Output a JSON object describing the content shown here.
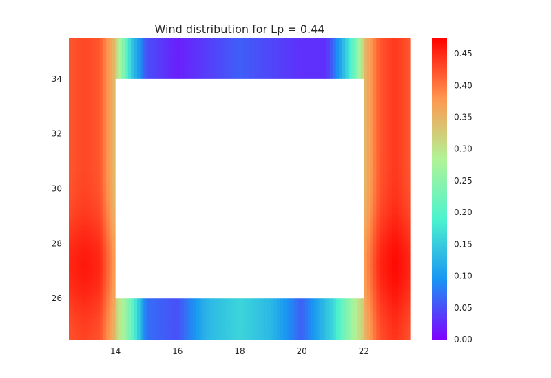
{
  "chart_data": {
    "type": "heatmap",
    "title": "Wind distribution for Lp = 0.44",
    "xlabel": "",
    "ylabel": "",
    "xlim": [
      12.5,
      23.5
    ],
    "ylim": [
      24.5,
      35.5
    ],
    "x_ticks": [
      14,
      16,
      18,
      20,
      22
    ],
    "y_ticks": [
      26,
      28,
      30,
      32,
      34
    ],
    "x_tick_labels": [
      "14",
      "16",
      "18",
      "20",
      "22"
    ],
    "y_tick_labels": [
      "26",
      "28",
      "30",
      "32",
      "34"
    ],
    "blank_region": {
      "x": [
        14,
        22
      ],
      "y": [
        26,
        34
      ]
    },
    "colormap": "rainbow",
    "colormap_stops": [
      "#8000ff",
      "#1996f3",
      "#4df3ce",
      "#b2f396",
      "#ff964f",
      "#ff0000"
    ],
    "color_range": [
      0.0,
      0.475
    ],
    "colorbar_ticks": [
      0.0,
      0.05,
      0.1,
      0.15,
      0.2,
      0.25,
      0.3,
      0.35,
      0.4,
      0.45
    ],
    "colorbar_tick_labels": [
      "0.00",
      "0.05",
      "0.10",
      "0.15",
      "0.20",
      "0.25",
      "0.30",
      "0.35",
      "0.40",
      "0.45"
    ],
    "grid": false,
    "value_profile": {
      "side_columns_x": [
        12.5,
        13.0,
        13.5,
        13.75,
        14.0,
        22.0,
        22.25,
        22.5,
        23.0,
        23.5
      ],
      "side_columns_value": [
        0.43,
        0.44,
        0.43,
        0.39,
        0.35,
        0.35,
        0.39,
        0.43,
        0.45,
        0.43
      ],
      "side_peak_y": 27.2,
      "top_band_x": [
        14.0,
        14.5,
        15.0,
        16.0,
        18.0,
        20.0,
        20.8,
        21.3,
        21.8,
        22.0
      ],
      "top_band_value": [
        0.33,
        0.15,
        0.05,
        0.02,
        0.06,
        0.03,
        0.03,
        0.12,
        0.25,
        0.33
      ],
      "bottom_band_x": [
        14.0,
        14.5,
        15.0,
        16.0,
        17.0,
        18.0,
        19.0,
        20.0,
        21.0,
        21.5,
        22.0
      ],
      "bottom_band_value": [
        0.33,
        0.22,
        0.07,
        0.05,
        0.13,
        0.16,
        0.13,
        0.06,
        0.16,
        0.25,
        0.33
      ]
    }
  }
}
